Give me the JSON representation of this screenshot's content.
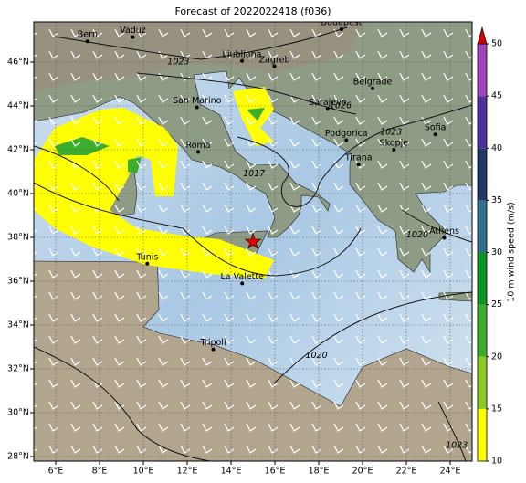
{
  "title": "Forecast of 2022022418 (f036)",
  "map": {
    "lon_ticks": [
      {
        "value": 6,
        "label": "6°E"
      },
      {
        "value": 8,
        "label": "8°E"
      },
      {
        "value": 10,
        "label": "10°E"
      },
      {
        "value": 12,
        "label": "12°E"
      },
      {
        "value": 14,
        "label": "14°E"
      },
      {
        "value": 16,
        "label": "16°E"
      },
      {
        "value": 18,
        "label": "18°E"
      },
      {
        "value": 20,
        "label": "20°E"
      },
      {
        "value": 22,
        "label": "22°E"
      },
      {
        "value": 24,
        "label": "24°E"
      }
    ],
    "lat_ticks": [
      {
        "value": 28,
        "label": "28°N"
      },
      {
        "value": 30,
        "label": "30°N"
      },
      {
        "value": 32,
        "label": "32°N"
      },
      {
        "value": 34,
        "label": "34°N"
      },
      {
        "value": 36,
        "label": "36°N"
      },
      {
        "value": 38,
        "label": "38°N"
      },
      {
        "value": 40,
        "label": "40°N"
      },
      {
        "value": 42,
        "label": "42°N"
      },
      {
        "value": 44,
        "label": "44°N"
      },
      {
        "value": 46,
        "label": "46°N"
      }
    ],
    "cities": [
      {
        "name": "Budapest",
        "lon": 19.04,
        "lat": 47.5
      },
      {
        "name": "Bern",
        "lon": 7.45,
        "lat": 46.95
      },
      {
        "name": "Vaduz",
        "lon": 9.52,
        "lat": 47.14
      },
      {
        "name": "Ljubljana",
        "lon": 14.5,
        "lat": 46.05
      },
      {
        "name": "Zagreb",
        "lon": 15.98,
        "lat": 45.8
      },
      {
        "name": "Belgrade",
        "lon": 20.46,
        "lat": 44.8
      },
      {
        "name": "San Marino",
        "lon": 12.45,
        "lat": 43.94
      },
      {
        "name": "Sarajevo",
        "lon": 18.41,
        "lat": 43.86
      },
      {
        "name": "Podgorica",
        "lon": 19.26,
        "lat": 42.44
      },
      {
        "name": "Roma",
        "lon": 12.5,
        "lat": 41.9
      },
      {
        "name": "Tirana",
        "lon": 19.82,
        "lat": 41.33
      },
      {
        "name": "Skopje",
        "lon": 21.43,
        "lat": 42.0
      },
      {
        "name": "Sofia",
        "lon": 23.32,
        "lat": 42.7
      },
      {
        "name": "Athens",
        "lon": 23.73,
        "lat": 37.98
      },
      {
        "name": "Tunis",
        "lon": 10.18,
        "lat": 36.8
      },
      {
        "name": "La Valette",
        "lon": 14.51,
        "lat": 35.9
      },
      {
        "name": "Tripoli",
        "lon": 13.19,
        "lat": 32.89
      }
    ],
    "isobar_labels": [
      {
        "label": "1020",
        "lon": 17.9,
        "lat": 32.6
      },
      {
        "label": "1020",
        "lon": 22.5,
        "lat": 38.1
      },
      {
        "label": "1023",
        "lon": 24.3,
        "lat": 28.5
      },
      {
        "label": "1017",
        "lon": 15.05,
        "lat": 40.9
      },
      {
        "label": "1023",
        "lon": 11.6,
        "lat": 46.0
      },
      {
        "label": "1026",
        "lon": 19.0,
        "lat": 44.0
      },
      {
        "label": "1023",
        "lon": 21.3,
        "lat": 42.8
      }
    ],
    "marker": {
      "lon": 15.0,
      "lat": 37.8
    }
  },
  "colorbar": {
    "label": "10 m wind speed (m/s)",
    "ticks": [
      10,
      15,
      20,
      25,
      30,
      35,
      40,
      45,
      50
    ],
    "colors": [
      "#ffff00",
      "#8cc828",
      "#3cae2e",
      "#0c9424",
      "#336f8c",
      "#1f3a66",
      "#52309c",
      "#a043bd"
    ],
    "extend_color": "#d40000"
  }
}
